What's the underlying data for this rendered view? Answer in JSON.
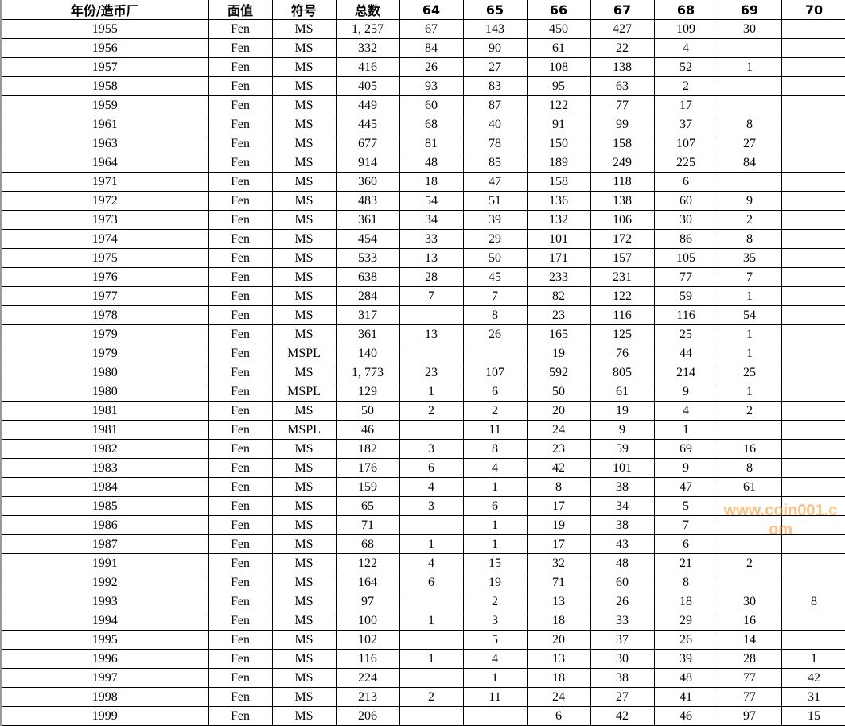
{
  "headers": [
    "年份/造币厂",
    "面值",
    "符号",
    "总数",
    "64",
    "65",
    "66",
    "67",
    "68",
    "69",
    "70"
  ],
  "rows": [
    [
      "1955",
      "Fen",
      "MS",
      "1, 257",
      "67",
      "143",
      "450",
      "427",
      "109",
      "30",
      ""
    ],
    [
      "1956",
      "Fen",
      "MS",
      "332",
      "84",
      "90",
      "61",
      "22",
      "4",
      "",
      ""
    ],
    [
      "1957",
      "Fen",
      "MS",
      "416",
      "26",
      "27",
      "108",
      "138",
      "52",
      "1",
      ""
    ],
    [
      "1958",
      "Fen",
      "MS",
      "405",
      "93",
      "83",
      "95",
      "63",
      "2",
      "",
      ""
    ],
    [
      "1959",
      "Fen",
      "MS",
      "449",
      "60",
      "87",
      "122",
      "77",
      "17",
      "",
      ""
    ],
    [
      "1961",
      "Fen",
      "MS",
      "445",
      "68",
      "40",
      "91",
      "99",
      "37",
      "8",
      ""
    ],
    [
      "1963",
      "Fen",
      "MS",
      "677",
      "81",
      "78",
      "150",
      "158",
      "107",
      "27",
      ""
    ],
    [
      "1964",
      "Fen",
      "MS",
      "914",
      "48",
      "85",
      "189",
      "249",
      "225",
      "84",
      ""
    ],
    [
      "1971",
      "Fen",
      "MS",
      "360",
      "18",
      "47",
      "158",
      "118",
      "6",
      "",
      ""
    ],
    [
      "1972",
      "Fen",
      "MS",
      "483",
      "54",
      "51",
      "136",
      "138",
      "60",
      "9",
      ""
    ],
    [
      "1973",
      "Fen",
      "MS",
      "361",
      "34",
      "39",
      "132",
      "106",
      "30",
      "2",
      ""
    ],
    [
      "1974",
      "Fen",
      "MS",
      "454",
      "33",
      "29",
      "101",
      "172",
      "86",
      "8",
      ""
    ],
    [
      "1975",
      "Fen",
      "MS",
      "533",
      "13",
      "50",
      "171",
      "157",
      "105",
      "35",
      ""
    ],
    [
      "1976",
      "Fen",
      "MS",
      "638",
      "28",
      "45",
      "233",
      "231",
      "77",
      "7",
      ""
    ],
    [
      "1977",
      "Fen",
      "MS",
      "284",
      "7",
      "7",
      "82",
      "122",
      "59",
      "1",
      ""
    ],
    [
      "1978",
      "Fen",
      "MS",
      "317",
      "",
      "8",
      "23",
      "116",
      "116",
      "54",
      ""
    ],
    [
      "1979",
      "Fen",
      "MS",
      "361",
      "13",
      "26",
      "165",
      "125",
      "25",
      "1",
      ""
    ],
    [
      "1979",
      "Fen",
      "MSPL",
      "140",
      "",
      "",
      "19",
      "76",
      "44",
      "1",
      ""
    ],
    [
      "1980",
      "Fen",
      "MS",
      "1, 773",
      "23",
      "107",
      "592",
      "805",
      "214",
      "25",
      ""
    ],
    [
      "1980",
      "Fen",
      "MSPL",
      "129",
      "1",
      "6",
      "50",
      "61",
      "9",
      "1",
      ""
    ],
    [
      "1981",
      "Fen",
      "MS",
      "50",
      "2",
      "2",
      "20",
      "19",
      "4",
      "2",
      ""
    ],
    [
      "1981",
      "Fen",
      "MSPL",
      "46",
      "",
      "11",
      "24",
      "9",
      "1",
      "",
      ""
    ],
    [
      "1982",
      "Fen",
      "MS",
      "182",
      "3",
      "8",
      "23",
      "59",
      "69",
      "16",
      ""
    ],
    [
      "1983",
      "Fen",
      "MS",
      "176",
      "6",
      "4",
      "42",
      "101",
      "9",
      "8",
      ""
    ],
    [
      "1984",
      "Fen",
      "MS",
      "159",
      "4",
      "1",
      "8",
      "38",
      "47",
      "61",
      ""
    ],
    [
      "1985",
      "Fen",
      "MS",
      "65",
      "3",
      "6",
      "17",
      "34",
      "5",
      "",
      ""
    ],
    [
      "1986",
      "Fen",
      "MS",
      "71",
      "",
      "1",
      "19",
      "38",
      "7",
      "",
      ""
    ],
    [
      "1987",
      "Fen",
      "MS",
      "68",
      "1",
      "1",
      "17",
      "43",
      "6",
      "",
      ""
    ],
    [
      "1991",
      "Fen",
      "MS",
      "122",
      "4",
      "15",
      "32",
      "48",
      "21",
      "2",
      ""
    ],
    [
      "1992",
      "Fen",
      "MS",
      "164",
      "6",
      "19",
      "71",
      "60",
      "8",
      "",
      ""
    ],
    [
      "1993",
      "Fen",
      "MS",
      "97",
      "",
      "2",
      "13",
      "26",
      "18",
      "30",
      "8"
    ],
    [
      "1994",
      "Fen",
      "MS",
      "100",
      "1",
      "3",
      "18",
      "33",
      "29",
      "16",
      ""
    ],
    [
      "1995",
      "Fen",
      "MS",
      "102",
      "",
      "5",
      "20",
      "37",
      "26",
      "14",
      ""
    ],
    [
      "1996",
      "Fen",
      "MS",
      "116",
      "1",
      "4",
      "13",
      "30",
      "39",
      "28",
      "1"
    ],
    [
      "1997",
      "Fen",
      "MS",
      "224",
      "",
      "1",
      "18",
      "38",
      "48",
      "77",
      "42"
    ],
    [
      "1998",
      "Fen",
      "MS",
      "213",
      "2",
      "11",
      "24",
      "27",
      "41",
      "77",
      "31"
    ],
    [
      "1999",
      "Fen",
      "MS",
      "206",
      "",
      "",
      "6",
      "42",
      "46",
      "97",
      "15"
    ]
  ],
  "watermark": "www.coin001.com"
}
